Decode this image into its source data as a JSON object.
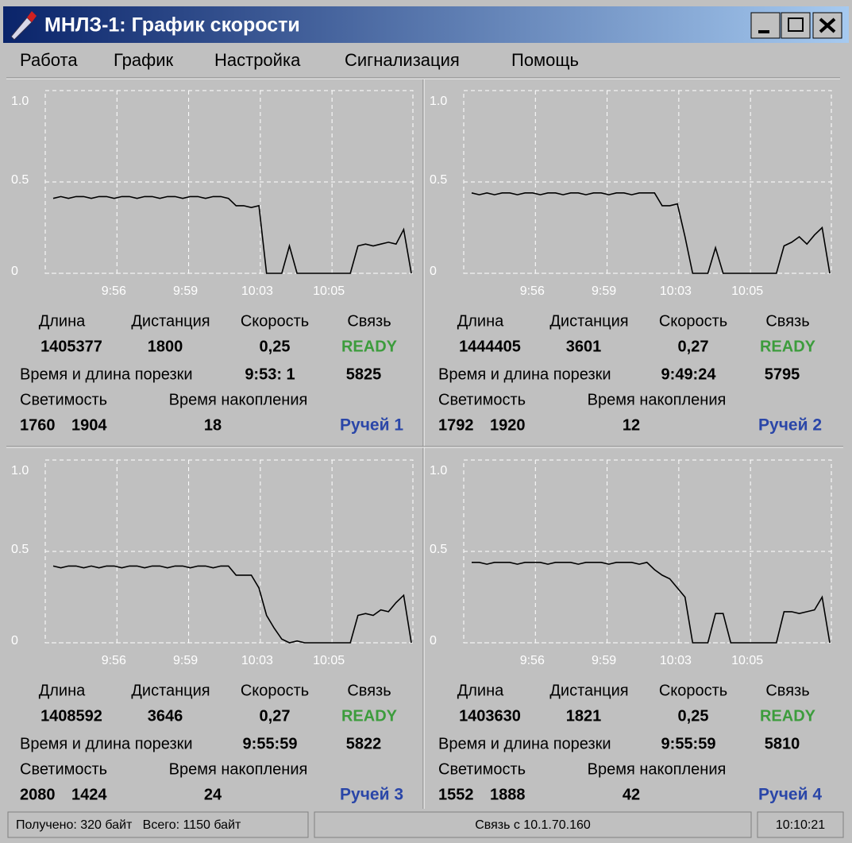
{
  "window": {
    "title": "МНЛЗ-1: График скорости"
  },
  "menu": [
    "Работа",
    "График",
    "Настройка",
    "Сигнализация",
    "Помощь"
  ],
  "panels": [
    {
      "chart": {
        "type": "line",
        "ylim": [
          0,
          1
        ],
        "yticks": [
          {
            "value": 1,
            "label": "1.0"
          },
          0.5,
          0
        ],
        "xtick_labels": [
          "9:56",
          "9:59",
          "10:03",
          "10:05"
        ],
        "color": "#000000",
        "values": [
          0.41,
          0.42,
          0.41,
          0.42,
          0.42,
          0.41,
          0.42,
          0.42,
          0.41,
          0.42,
          0.42,
          0.41,
          0.42,
          0.42,
          0.41,
          0.42,
          0.42,
          0.41,
          0.42,
          0.42,
          0.41,
          0.42,
          0.42,
          0.41,
          0.37,
          0.37,
          0.36,
          0.37,
          0,
          0,
          0,
          0.15,
          0,
          0,
          0,
          0,
          0,
          0,
          0,
          0,
          0.15,
          0.16,
          0.15,
          0.16,
          0.17,
          0.16,
          0.24,
          0
        ]
      },
      "length_label": "Длина",
      "length": 1405377,
      "distance_label": "Дистанция",
      "distance": 1800,
      "speed_label": "Скорость",
      "speed": "0,25",
      "link_label": "Связь",
      "link": "READY",
      "cut_label": "Время и длина порезки",
      "cut_time": "9:53: 1",
      "cut_length": 5825,
      "lum_label": "Светимость",
      "lum": [
        1760,
        1904
      ],
      "acc_label": "Время накопления",
      "acc": 18,
      "name": "Ручей 1"
    },
    {
      "chart": {
        "type": "line",
        "ylim": [
          0,
          1
        ],
        "yticks": [
          {
            "value": 1,
            "label": "1.0"
          },
          0.5,
          0
        ],
        "xtick_labels": [
          "9:56",
          "9:59",
          "10:03",
          "10:05"
        ],
        "color": "#000000",
        "values": [
          0.44,
          0.43,
          0.44,
          0.43,
          0.44,
          0.44,
          0.43,
          0.44,
          0.44,
          0.43,
          0.44,
          0.44,
          0.43,
          0.44,
          0.44,
          0.43,
          0.44,
          0.44,
          0.43,
          0.44,
          0.44,
          0.43,
          0.44,
          0.44,
          0.44,
          0.37,
          0.37,
          0.38,
          0.2,
          0,
          0,
          0,
          0.14,
          0,
          0,
          0,
          0,
          0,
          0,
          0,
          0,
          0.15,
          0.17,
          0.2,
          0.16,
          0.21,
          0.25,
          0
        ]
      },
      "length_label": "Длина",
      "length": 1444405,
      "distance_label": "Дистанция",
      "distance": 3601,
      "speed_label": "Скорость",
      "speed": "0,27",
      "link_label": "Связь",
      "link": "READY",
      "cut_label": "Время и длина  порезки",
      "cut_time": "9:49:24",
      "cut_length": 5795,
      "lum_label": "Светимость",
      "lum": [
        1792,
        1920
      ],
      "acc_label": "Время накопления",
      "acc": 12,
      "name": "Ручей 2"
    },
    {
      "chart": {
        "type": "line",
        "ylim": [
          0,
          1
        ],
        "yticks": [
          {
            "value": 1,
            "label": "1.0"
          },
          0.5,
          0
        ],
        "xtick_labels": [
          "9:56",
          "9:59",
          "10:03",
          "10:05"
        ],
        "color": "#000000",
        "values": [
          0.42,
          0.41,
          0.42,
          0.42,
          0.41,
          0.42,
          0.41,
          0.42,
          0.42,
          0.41,
          0.42,
          0.42,
          0.41,
          0.42,
          0.42,
          0.41,
          0.42,
          0.42,
          0.41,
          0.42,
          0.42,
          0.41,
          0.42,
          0.42,
          0.37,
          0.37,
          0.37,
          0.3,
          0.15,
          0.08,
          0.02,
          0,
          0.01,
          0,
          0,
          0,
          0,
          0,
          0,
          0,
          0.15,
          0.16,
          0.15,
          0.18,
          0.17,
          0.22,
          0.26,
          0
        ]
      },
      "length_label": "Длина",
      "length": 1408592,
      "distance_label": "Дистанция",
      "distance": 3646,
      "speed_label": "Скорость",
      "speed": "0,27",
      "link_label": "Связь",
      "link": "READY",
      "cut_label": "Время и длина порезки",
      "cut_time": "9:55:59",
      "cut_length": 5822,
      "lum_label": "Светимость",
      "lum": [
        2080,
        1424
      ],
      "acc_label": "Время накопления",
      "acc": 24,
      "name": "Ручей 3"
    },
    {
      "chart": {
        "type": "line",
        "ylim": [
          0,
          1
        ],
        "yticks": [
          {
            "value": 1,
            "label": "1.0"
          },
          0.5,
          0
        ],
        "xtick_labels": [
          "9:56",
          "9:59",
          "10:03",
          "10:05"
        ],
        "color": "#000000",
        "values": [
          0.44,
          0.44,
          0.43,
          0.44,
          0.44,
          0.44,
          0.43,
          0.44,
          0.44,
          0.44,
          0.43,
          0.44,
          0.44,
          0.44,
          0.43,
          0.44,
          0.44,
          0.44,
          0.43,
          0.44,
          0.44,
          0.44,
          0.43,
          0.44,
          0.4,
          0.37,
          0.35,
          0.3,
          0.25,
          0,
          0,
          0,
          0.16,
          0.16,
          0,
          0,
          0,
          0,
          0,
          0,
          0,
          0.17,
          0.17,
          0.16,
          0.17,
          0.18,
          0.25,
          0
        ]
      },
      "length_label": "Длина",
      "length": 1403630,
      "distance_label": "Дистанция",
      "distance": 1821,
      "speed_label": "Скорость",
      "speed": "0,25",
      "link_label": "Связь",
      "link": "READY",
      "cut_label": "Время и длина порезки",
      "cut_time": "9:55:59",
      "cut_length": 5810,
      "lum_label": "Светимость",
      "lum": [
        1552,
        1888
      ],
      "acc_label": "Время накопления",
      "acc": 42,
      "name": "Ручей 4"
    }
  ],
  "status": {
    "received": "Получено: 320 байт   Всего: 1150 байт",
    "connection": "Связь с 10.1.70.160",
    "time": "10:10:21"
  }
}
